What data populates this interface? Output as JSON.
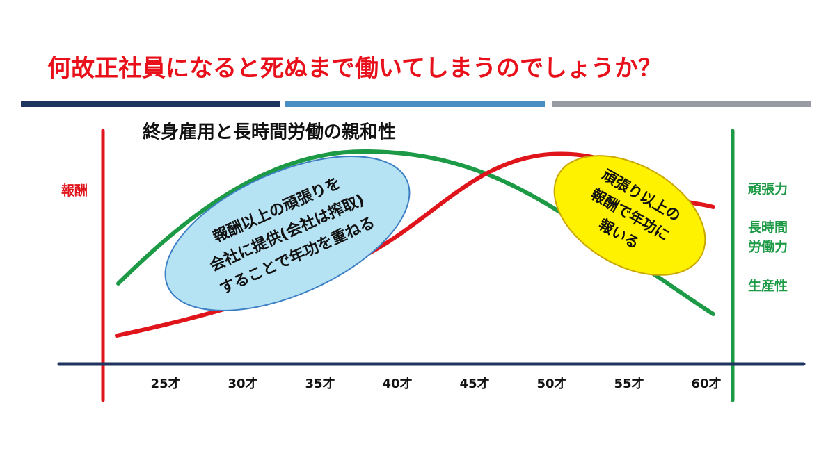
{
  "header": {
    "title": "何故正社員になると死ぬまで働いてしまうのでしょうか？"
  },
  "diagram": {
    "title": "終身雇用と長時間労働の親和性",
    "left_label": "報酬",
    "right_labels": [
      "頑張力",
      "長時間",
      "労働力",
      "生産性"
    ],
    "x_labels": [
      "25才",
      "30才",
      "35才",
      "40才",
      "45才",
      "50才",
      "55才",
      "60才"
    ],
    "blue_note": [
      "報酬以上の頑張りを",
      "会社に提供(会社は搾取)",
      "することで年功を重ねる"
    ],
    "yellow_note": [
      "頑張り以上の",
      "報酬で年功に",
      "報いる"
    ]
  }
}
